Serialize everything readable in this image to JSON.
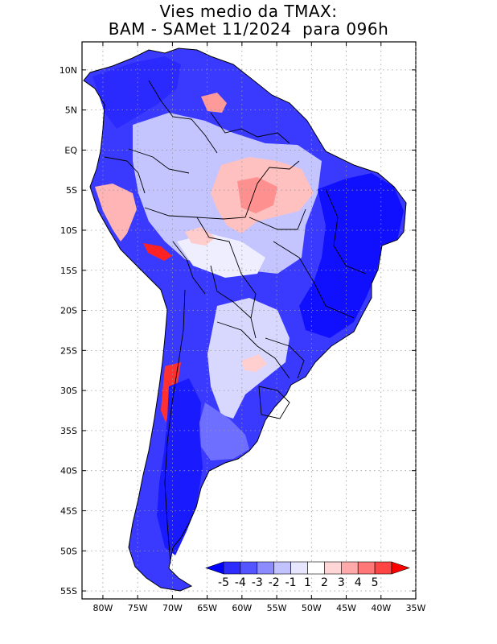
{
  "title": {
    "line1": "Vies medio da TMAX:",
    "line2": "BAM - SAMet 11/2024  para 096h"
  },
  "map": {
    "lat_labels": [
      "10N",
      "5N",
      "EQ",
      "5S",
      "10S",
      "15S",
      "20S",
      "25S",
      "30S",
      "35S",
      "40S",
      "45S",
      "50S",
      "55S"
    ],
    "lon_labels": [
      "80W",
      "75W",
      "70W",
      "65W",
      "60W",
      "55W",
      "50W",
      "45W",
      "40W",
      "35W"
    ],
    "lat_values": [
      10,
      5,
      0,
      -5,
      -10,
      -15,
      -20,
      -25,
      -30,
      -35,
      -40,
      -45,
      -50,
      -55
    ],
    "lon_values": [
      -80,
      -75,
      -70,
      -65,
      -60,
      -55,
      -50,
      -45,
      -40,
      -35
    ],
    "lon_range": [
      -83,
      -35
    ],
    "lat_range": [
      -56,
      13.5
    ]
  },
  "colorbar": {
    "labels": [
      "-5",
      "-4",
      "-3",
      "-2",
      "-1",
      "1",
      "2",
      "3",
      "4",
      "5"
    ],
    "colors": [
      "#0000ff",
      "#2d2dff",
      "#5555ff",
      "#8c8cff",
      "#c2c2ff",
      "#e6e6ff",
      "#ffffff",
      "#ffd6d6",
      "#ffaaaa",
      "#ff7777",
      "#ff4444",
      "#ff0000"
    ],
    "under_color": "#0000ff",
    "over_color": "#ff0000"
  },
  "colors": {
    "strong_cold": "#1a1aff",
    "cold": "#5a5aff",
    "mild_cold": "#b8b8ff",
    "neutral": "#f4f4ff",
    "mild_warm": "#ffc8c8",
    "warm": "#ff8080",
    "hot": "#ff1a1a",
    "border_line": "#000000",
    "grid_line": "#999999"
  }
}
